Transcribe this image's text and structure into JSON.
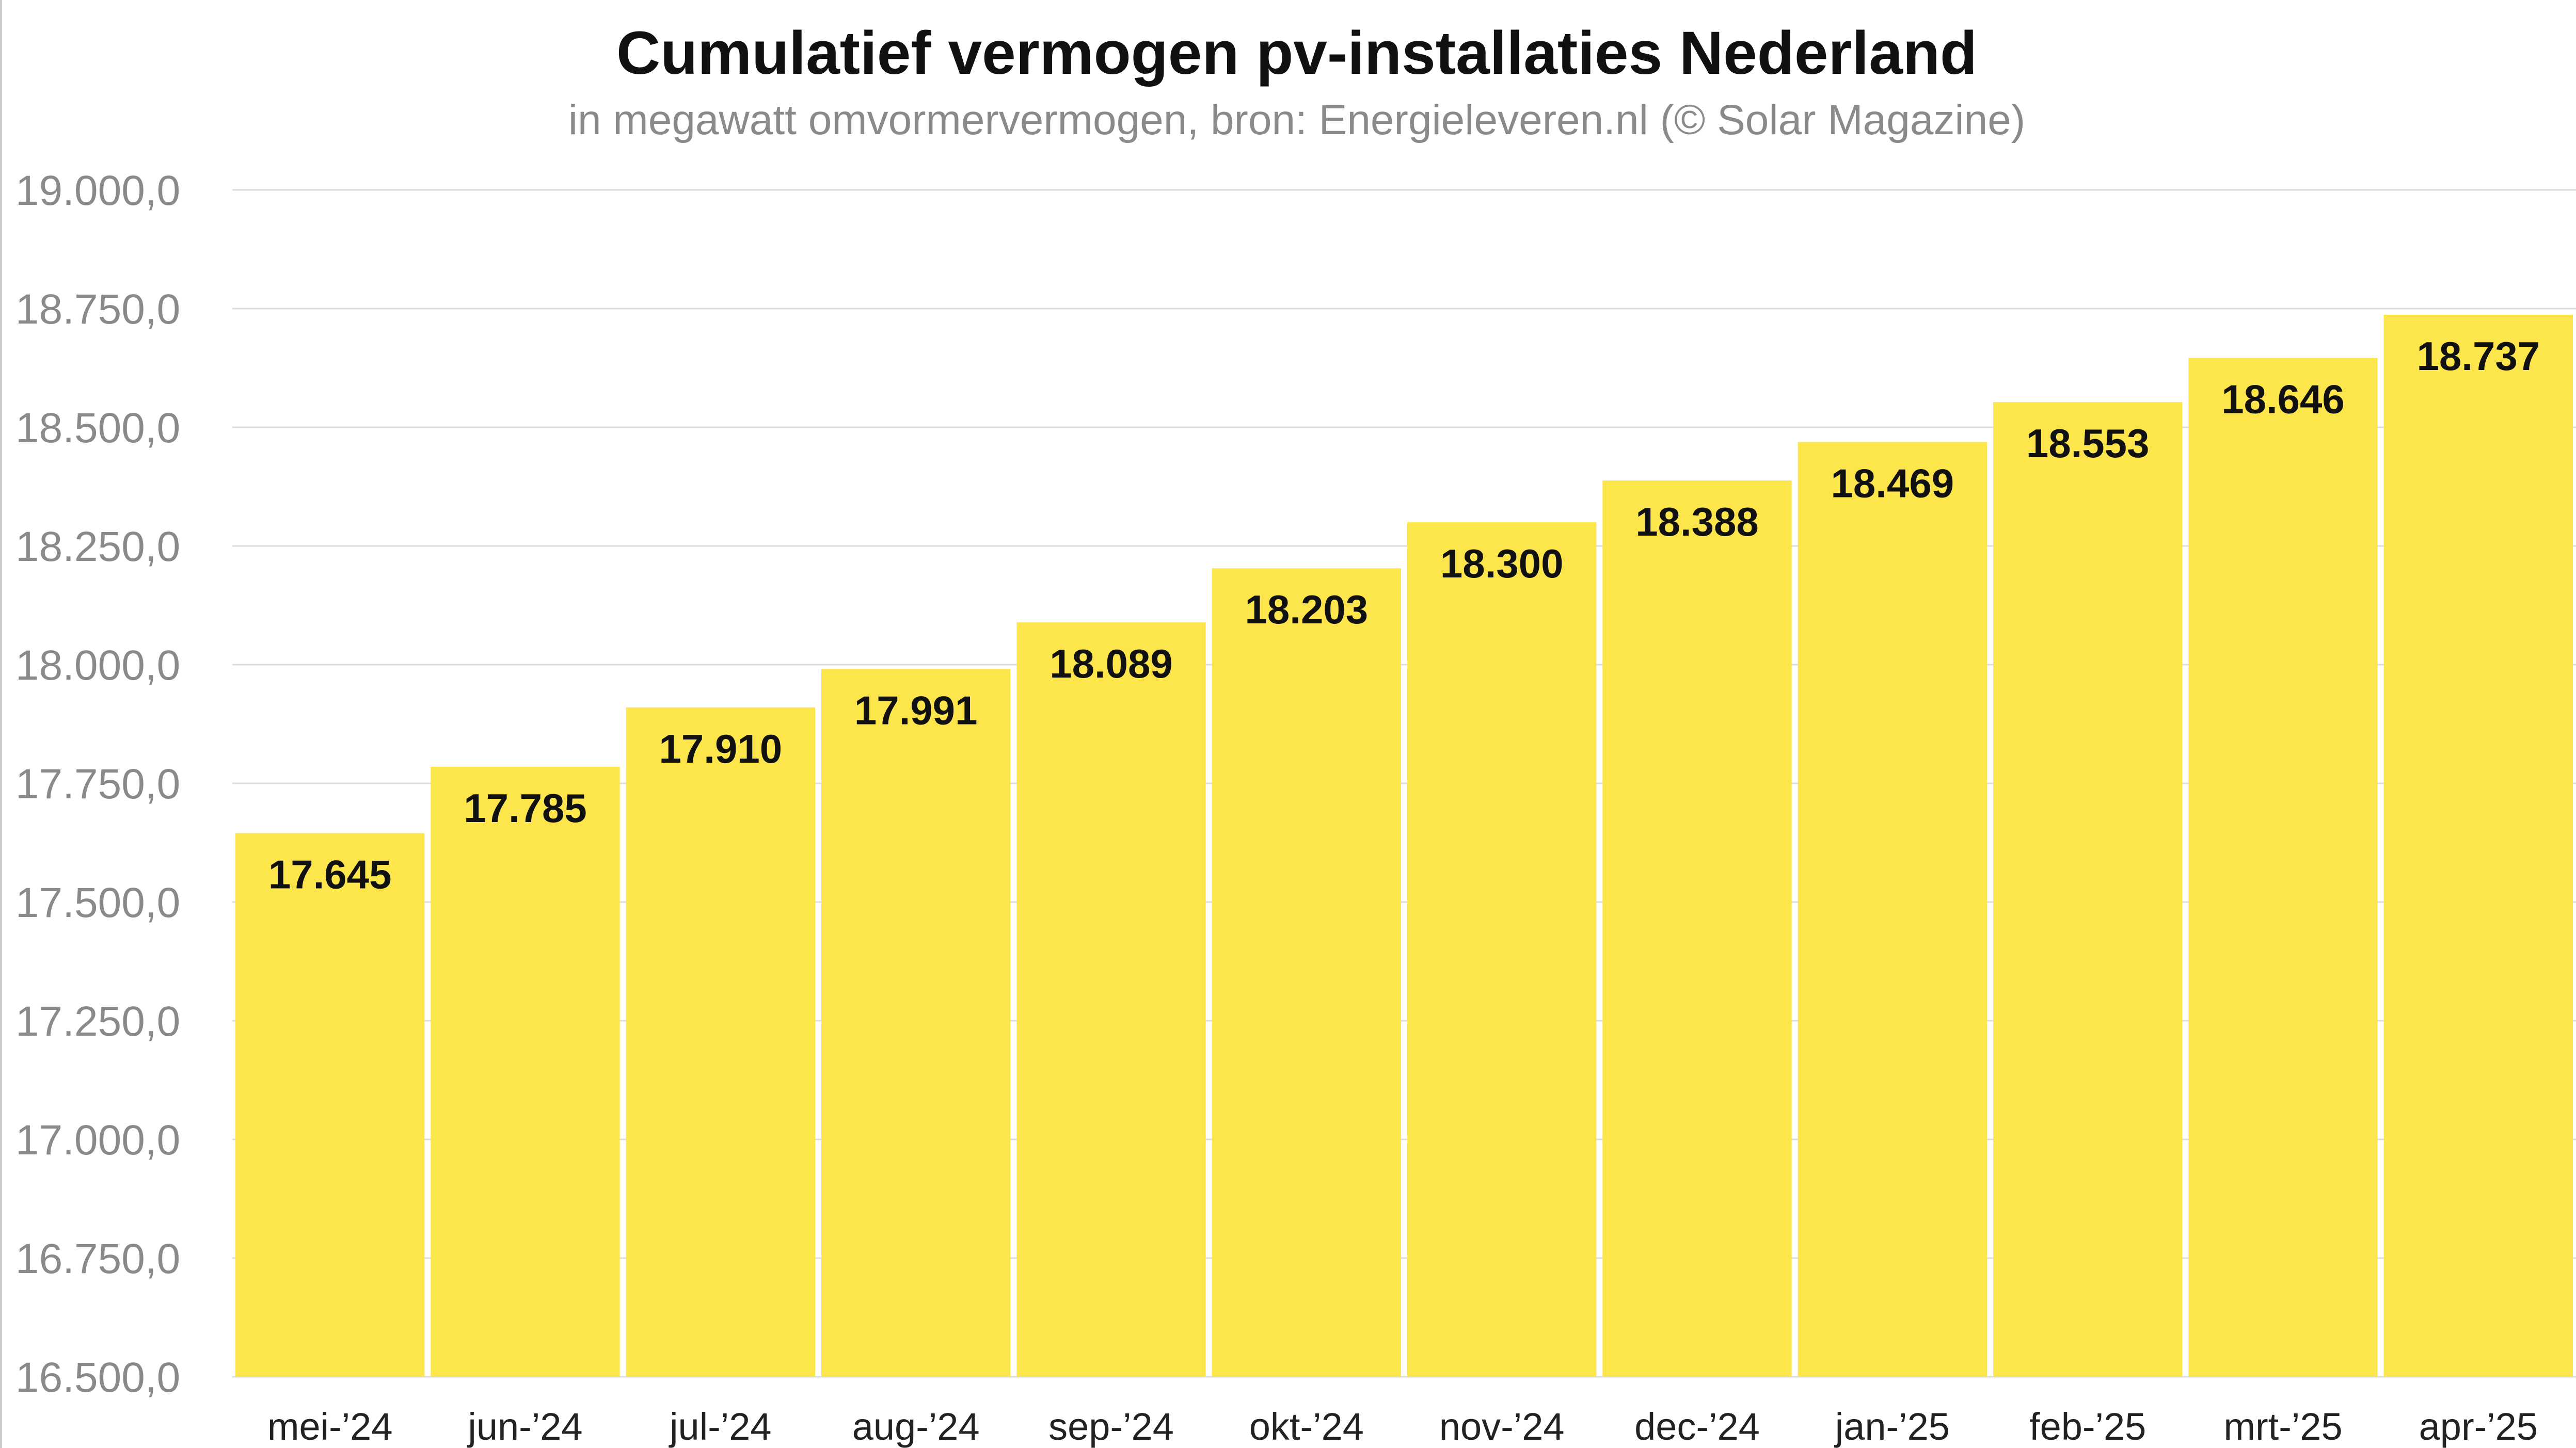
{
  "chart_data": {
    "type": "bar",
    "title": "Cumulatief vermogen pv-installaties Nederland",
    "subtitle": "in megawatt omvormervermogen, bron: Energieleveren.nl (© Solar Magazine)",
    "categories": [
      "mei-’24",
      "jun-’24",
      "jul-’24",
      "aug-’24",
      "sep-’24",
      "okt-’24",
      "nov-’24",
      "dec-’24",
      "jan-’25",
      "feb-’25",
      "mrt-’25",
      "apr-’25"
    ],
    "values": [
      17645,
      17785,
      17910,
      17991,
      18089,
      18203,
      18300,
      18388,
      18469,
      18553,
      18646,
      18737
    ],
    "value_labels": [
      "17.645",
      "17.785",
      "17.910",
      "17.991",
      "18.089",
      "18.203",
      "18.300",
      "18.388",
      "18.469",
      "18.553",
      "18.646",
      "18.737"
    ],
    "ylim": [
      16500,
      19000
    ],
    "yticks": [
      16500,
      16750,
      17000,
      17250,
      17500,
      17750,
      18000,
      18250,
      18500,
      18750,
      19000
    ],
    "ytick_labels": [
      "16.500,0",
      "16.750,0",
      "17.000,0",
      "17.250,0",
      "17.500,0",
      "17.750,0",
      "18.000,0",
      "18.250,0",
      "18.500,0",
      "18.750,0",
      "19.000,0"
    ],
    "grid": true,
    "bar_color": "#FDE64B",
    "gridline_color": "#dddddd"
  }
}
